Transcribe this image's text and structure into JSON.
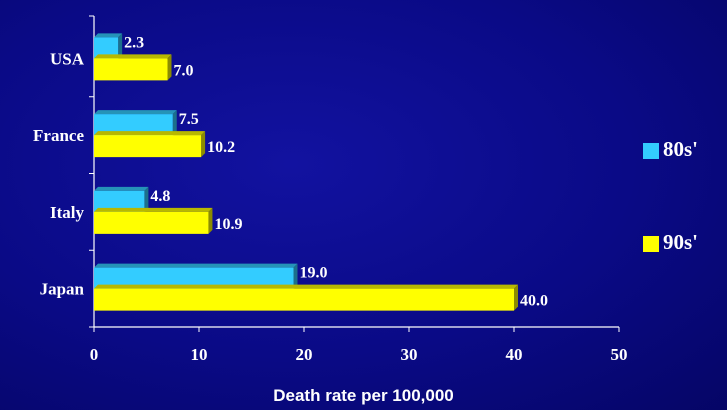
{
  "chart_data": {
    "type": "bar",
    "orientation": "horizontal",
    "categories": [
      "USA",
      "France",
      "Italy",
      "Japan"
    ],
    "series": [
      {
        "name": "80s'",
        "values": [
          2.3,
          7.5,
          4.8,
          19.0
        ],
        "color": "#33ccff"
      },
      {
        "name": "90s'",
        "values": [
          7.0,
          10.2,
          10.9,
          40.0
        ],
        "color": "#ffff00"
      }
    ],
    "data_labels": [
      [
        "2.3",
        "7.5",
        "4.8",
        "19.0"
      ],
      [
        "7.0",
        "10.2",
        "10.9",
        "40.0"
      ]
    ],
    "title": "",
    "xlabel": "Death rate per 100,000",
    "ylabel": "",
    "xlim": [
      0,
      50
    ],
    "x_ticks": [
      0,
      10,
      20,
      30,
      40,
      50
    ],
    "grid": false,
    "legend_position": "right",
    "three_d": true
  }
}
